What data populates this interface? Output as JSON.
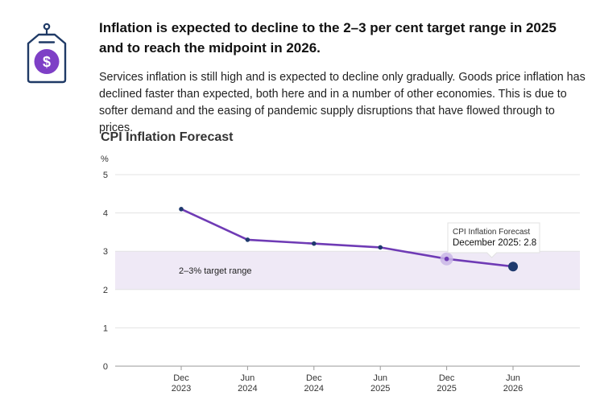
{
  "icon": {
    "name": "price-tag-dollar-icon",
    "glyph": "$",
    "accent": "#7E3FC6",
    "outline": "#1F3A66"
  },
  "headline": "Inflation is expected to decline to the 2–3 per cent target range in 2025 and to reach the midpoint in 2026.",
  "body": "Services inflation is still high and is expected to decline only gradually. Goods price inflation has declined faster than expected, both here and in a number of other economies. This is due to softer demand and the easing of pandemic supply disruptions that have flowed through to prices.",
  "chart_data": {
    "type": "line",
    "title": "CPI Inflation Forecast",
    "ylabel": "%",
    "xlabel": "",
    "ylim": [
      0,
      5
    ],
    "yticks": [
      "0",
      "1",
      "2",
      "3",
      "4",
      "5"
    ],
    "categories": [
      [
        "Dec",
        "2023"
      ],
      [
        "Jun",
        "2024"
      ],
      [
        "Dec",
        "2024"
      ],
      [
        "Jun",
        "2025"
      ],
      [
        "Dec",
        "2025"
      ],
      [
        "Jun",
        "2026"
      ]
    ],
    "series": [
      {
        "name": "CPI Inflation Forecast",
        "values": [
          4.1,
          3.3,
          3.2,
          3.1,
          2.8,
          2.6
        ],
        "color": "#6F3BB5"
      }
    ],
    "target_band": {
      "low": 2,
      "high": 3,
      "label": "2–3% target range",
      "color": "#EFE9F6"
    },
    "grid": true,
    "tooltip": {
      "title": "CPI Inflation Forecast",
      "text": "December 2025: 2.8",
      "index": 4
    },
    "highlight_color": "#1F3A6E",
    "hover_color": "#C9B6E6"
  }
}
